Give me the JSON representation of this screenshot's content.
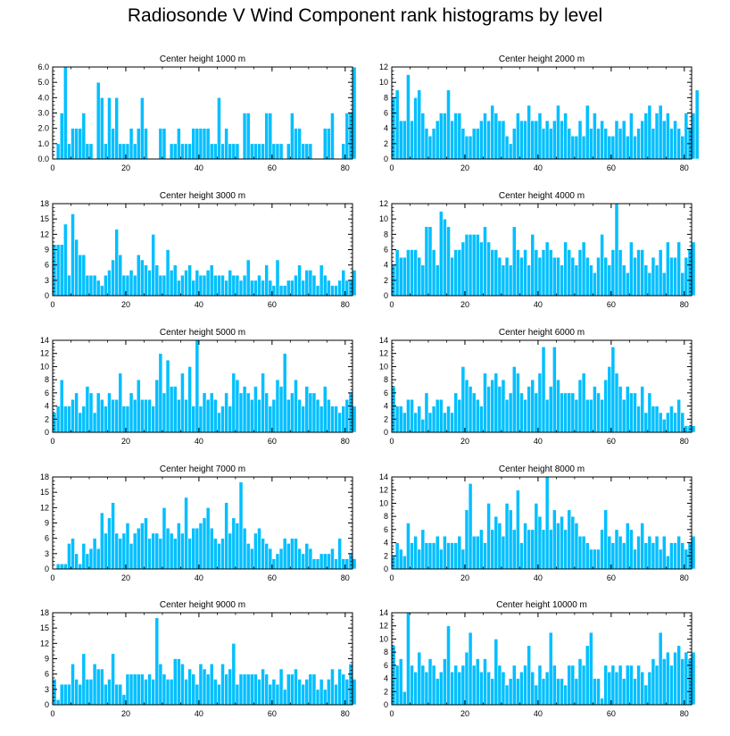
{
  "title": "Radiosonde V Wind Component rank histograms by level",
  "colors": {
    "bar": "#00BFFF",
    "bar_edge": "#ffffff",
    "axis": "#000000"
  },
  "chart_data": [
    {
      "type": "bar",
      "title": "Center height 1000 m",
      "ylim": [
        0,
        6
      ],
      "yticks": [
        0,
        1,
        2,
        3,
        4,
        5,
        6
      ],
      "ytick_labels": [
        "0.0",
        "1.0",
        "2.0",
        "3.0",
        "4.0",
        "5.0",
        "6.0"
      ],
      "xlim": [
        0,
        82
      ],
      "xticks": [
        0,
        20,
        40,
        60,
        80
      ],
      "xtick_labels": [
        "0",
        "20",
        "40",
        "60",
        "80"
      ],
      "values": [
        0,
        1,
        3,
        6,
        1,
        2,
        2,
        2,
        3,
        1,
        1,
        0,
        5,
        4,
        1,
        4,
        2,
        4,
        1,
        1,
        1,
        2,
        1,
        2,
        4,
        2,
        0,
        0,
        0,
        2,
        2,
        0,
        1,
        1,
        2,
        1,
        1,
        1,
        2,
        2,
        2,
        2,
        2,
        1,
        1,
        4,
        1,
        2,
        1,
        1,
        1,
        0,
        3,
        3,
        1,
        1,
        1,
        1,
        3,
        3,
        1,
        1,
        1,
        0,
        1,
        3,
        2,
        2,
        1,
        1,
        1,
        0,
        0,
        0,
        2,
        2,
        3,
        0,
        0,
        1,
        3,
        3,
        6
      ]
    },
    {
      "type": "bar",
      "title": "Center height 2000 m",
      "ylim": [
        0,
        12
      ],
      "yticks": [
        0,
        2,
        4,
        6,
        8,
        10,
        12
      ],
      "ytick_labels": [
        "0",
        "2",
        "4",
        "6",
        "8",
        "10",
        "12"
      ],
      "xlim": [
        0,
        82
      ],
      "xticks": [
        0,
        20,
        40,
        60,
        80
      ],
      "xtick_labels": [
        "0",
        "20",
        "40",
        "60",
        "80"
      ],
      "values": [
        8,
        9,
        5,
        5,
        11,
        5,
        8,
        9,
        6,
        4,
        3,
        4,
        5,
        6,
        6,
        9,
        5,
        6,
        6,
        4,
        3,
        3,
        4,
        4,
        5,
        6,
        5,
        7,
        6,
        5,
        5,
        3,
        2,
        4,
        6,
        5,
        5,
        7,
        5,
        5,
        6,
        4,
        5,
        4,
        5,
        7,
        5,
        6,
        4,
        3,
        3,
        5,
        3,
        7,
        4,
        6,
        4,
        5,
        4,
        3,
        3,
        5,
        4,
        5,
        3,
        6,
        3,
        4,
        5,
        6,
        7,
        4,
        6,
        7,
        5,
        6,
        4,
        5,
        4,
        3,
        6,
        4,
        6,
        9
      ]
    },
    {
      "type": "bar",
      "title": "Center height 3000 m",
      "ylim": [
        0,
        18
      ],
      "yticks": [
        0,
        3,
        6,
        9,
        12,
        15,
        18
      ],
      "ytick_labels": [
        "0",
        "3",
        "6",
        "9",
        "12",
        "15",
        "18"
      ],
      "xlim": [
        0,
        82
      ],
      "xticks": [
        0,
        20,
        40,
        60,
        80
      ],
      "xtick_labels": [
        "0",
        "20",
        "40",
        "60",
        "80"
      ],
      "values": [
        10,
        10,
        10,
        14,
        4,
        16,
        11,
        8,
        8,
        4,
        4,
        4,
        3,
        2,
        4,
        5,
        7,
        13,
        8,
        4,
        4,
        5,
        4,
        8,
        7,
        6,
        5,
        12,
        6,
        4,
        4,
        9,
        5,
        6,
        3,
        4,
        5,
        6,
        3,
        5,
        4,
        4,
        5,
        6,
        4,
        4,
        4,
        3,
        5,
        4,
        4,
        3,
        4,
        7,
        3,
        3,
        4,
        3,
        6,
        3,
        2,
        7,
        2,
        2,
        3,
        3,
        4,
        6,
        3,
        5,
        5,
        4,
        2,
        6,
        4,
        3,
        2,
        2,
        3,
        5,
        3,
        3,
        5
      ]
    },
    {
      "type": "bar",
      "title": "Center height 4000 m",
      "ylim": [
        0,
        12
      ],
      "yticks": [
        0,
        2,
        4,
        6,
        8,
        10,
        12
      ],
      "ytick_labels": [
        "0",
        "2",
        "4",
        "6",
        "8",
        "10",
        "12"
      ],
      "xlim": [
        0,
        82
      ],
      "xticks": [
        0,
        20,
        40,
        60,
        80
      ],
      "xtick_labels": [
        "0",
        "20",
        "40",
        "60",
        "80"
      ],
      "values": [
        4,
        6,
        5,
        5,
        6,
        6,
        6,
        5,
        4,
        9,
        9,
        6,
        4,
        11,
        10,
        9,
        5,
        6,
        6,
        7,
        8,
        8,
        8,
        8,
        7,
        9,
        7,
        6,
        6,
        5,
        4,
        5,
        4,
        9,
        6,
        5,
        6,
        4,
        8,
        6,
        5,
        6,
        7,
        6,
        5,
        5,
        4,
        7,
        6,
        5,
        4,
        6,
        7,
        5,
        4,
        3,
        5,
        8,
        5,
        4,
        6,
        12,
        6,
        4,
        3,
        7,
        5,
        6,
        6,
        4,
        3,
        5,
        4,
        6,
        3,
        7,
        5,
        5,
        7,
        3,
        5,
        6,
        7
      ]
    },
    {
      "type": "bar",
      "title": "Center height 5000 m",
      "ylim": [
        0,
        14
      ],
      "yticks": [
        0,
        2,
        4,
        6,
        8,
        10,
        12,
        14
      ],
      "ytick_labels": [
        "0",
        "2",
        "4",
        "6",
        "8",
        "10",
        "12",
        "14"
      ],
      "xlim": [
        0,
        82
      ],
      "xticks": [
        0,
        20,
        40,
        60,
        80
      ],
      "xtick_labels": [
        "0",
        "20",
        "40",
        "60",
        "80"
      ],
      "values": [
        3,
        4,
        8,
        4,
        4,
        5,
        6,
        3,
        4,
        7,
        6,
        3,
        6,
        5,
        4,
        6,
        5,
        5,
        9,
        4,
        4,
        6,
        5,
        8,
        5,
        5,
        5,
        4,
        8,
        12,
        6,
        11,
        7,
        7,
        5,
        9,
        5,
        10,
        4,
        14,
        4,
        6,
        5,
        6,
        5,
        3,
        4,
        6,
        4,
        9,
        8,
        6,
        7,
        6,
        5,
        7,
        5,
        9,
        6,
        4,
        5,
        8,
        7,
        12,
        5,
        6,
        8,
        5,
        4,
        7,
        6,
        6,
        5,
        4,
        7,
        5,
        4,
        4,
        3,
        4,
        5,
        6,
        4
      ]
    },
    {
      "type": "bar",
      "title": "Center height 6000 m",
      "ylim": [
        0,
        14
      ],
      "yticks": [
        0,
        2,
        4,
        6,
        8,
        10,
        12,
        14
      ],
      "ytick_labels": [
        "0",
        "2",
        "4",
        "6",
        "8",
        "10",
        "12",
        "14"
      ],
      "xlim": [
        0,
        82
      ],
      "xticks": [
        0,
        20,
        40,
        60,
        80
      ],
      "xtick_labels": [
        "0",
        "20",
        "40",
        "60",
        "80"
      ],
      "values": [
        7,
        4,
        4,
        3,
        5,
        5,
        3,
        4,
        2,
        6,
        3,
        4,
        5,
        5,
        3,
        4,
        3,
        6,
        5,
        10,
        8,
        7,
        6,
        5,
        4,
        9,
        7,
        8,
        9,
        7,
        8,
        5,
        6,
        10,
        9,
        6,
        5,
        7,
        8,
        6,
        9,
        13,
        5,
        7,
        13,
        8,
        6,
        6,
        6,
        6,
        5,
        8,
        9,
        5,
        5,
        7,
        6,
        5,
        8,
        10,
        13,
        9,
        7,
        5,
        7,
        6,
        6,
        4,
        7,
        3,
        6,
        4,
        4,
        3,
        2,
        3,
        4,
        3,
        5,
        3,
        1,
        1,
        1
      ]
    },
    {
      "type": "bar",
      "title": "Center height 7000 m",
      "ylim": [
        0,
        18
      ],
      "yticks": [
        0,
        3,
        6,
        9,
        12,
        15,
        18
      ],
      "ytick_labels": [
        "0",
        "3",
        "6",
        "9",
        "12",
        "15",
        "18"
      ],
      "xlim": [
        0,
        82
      ],
      "xticks": [
        0,
        20,
        40,
        60,
        80
      ],
      "xtick_labels": [
        "0",
        "20",
        "40",
        "60",
        "80"
      ],
      "values": [
        0,
        1,
        1,
        1,
        5,
        6,
        3,
        1,
        5,
        3,
        4,
        6,
        4,
        11,
        7,
        10,
        13,
        7,
        6,
        7,
        9,
        5,
        7,
        8,
        9,
        10,
        6,
        7,
        7,
        6,
        12,
        8,
        7,
        6,
        9,
        7,
        14,
        6,
        8,
        8,
        9,
        10,
        12,
        8,
        6,
        5,
        6,
        13,
        7,
        10,
        9,
        17,
        8,
        5,
        4,
        7,
        8,
        6,
        5,
        4,
        2,
        3,
        4,
        6,
        5,
        6,
        6,
        4,
        3,
        5,
        4,
        2,
        2,
        3,
        3,
        3,
        4,
        2,
        6,
        2,
        2,
        3,
        2
      ]
    },
    {
      "type": "bar",
      "title": "Center height 8000 m",
      "ylim": [
        0,
        14
      ],
      "yticks": [
        0,
        2,
        4,
        6,
        8,
        10,
        12,
        14
      ],
      "ytick_labels": [
        "0",
        "2",
        "4",
        "6",
        "8",
        "10",
        "12",
        "14"
      ],
      "xlim": [
        0,
        82
      ],
      "xticks": [
        0,
        20,
        40,
        60,
        80
      ],
      "xtick_labels": [
        "0",
        "20",
        "40",
        "60",
        "80"
      ],
      "values": [
        2,
        4,
        3,
        2,
        7,
        4,
        5,
        3,
        6,
        4,
        4,
        4,
        5,
        3,
        5,
        4,
        4,
        4,
        5,
        3,
        9,
        13,
        5,
        5,
        6,
        4,
        10,
        6,
        8,
        7,
        5,
        10,
        9,
        6,
        12,
        4,
        7,
        6,
        6,
        10,
        8,
        6,
        14,
        6,
        9,
        7,
        8,
        6,
        9,
        8,
        7,
        5,
        5,
        4,
        3,
        3,
        3,
        6,
        9,
        5,
        4,
        6,
        5,
        4,
        7,
        6,
        3,
        5,
        7,
        4,
        5,
        4,
        5,
        3,
        5,
        2,
        4,
        4,
        5,
        4,
        3,
        4,
        5
      ]
    },
    {
      "type": "bar",
      "title": "Center height 9000 m",
      "ylim": [
        0,
        18
      ],
      "yticks": [
        0,
        3,
        6,
        9,
        12,
        15,
        18
      ],
      "ytick_labels": [
        "0",
        "3",
        "6",
        "9",
        "12",
        "15",
        "18"
      ],
      "xlim": [
        0,
        82
      ],
      "xticks": [
        0,
        20,
        40,
        60,
        80
      ],
      "xtick_labels": [
        "0",
        "20",
        "40",
        "60",
        "80"
      ],
      "values": [
        5,
        1,
        4,
        4,
        4,
        8,
        5,
        4,
        10,
        5,
        5,
        8,
        7,
        7,
        4,
        5,
        10,
        4,
        4,
        2,
        6,
        6,
        6,
        6,
        6,
        5,
        6,
        5,
        17,
        8,
        6,
        5,
        5,
        9,
        9,
        8,
        5,
        7,
        6,
        4,
        8,
        7,
        6,
        8,
        5,
        4,
        8,
        6,
        7,
        12,
        4,
        6,
        6,
        6,
        6,
        6,
        5,
        7,
        6,
        4,
        5,
        4,
        7,
        3,
        6,
        6,
        7,
        5,
        4,
        5,
        6,
        6,
        3,
        5,
        3,
        5,
        7,
        4,
        7,
        6,
        5,
        8,
        5
      ]
    },
    {
      "type": "bar",
      "title": "Center height 10000 m",
      "ylim": [
        0,
        14
      ],
      "yticks": [
        0,
        2,
        4,
        6,
        8,
        10,
        12,
        14
      ],
      "ytick_labels": [
        "0",
        "2",
        "4",
        "6",
        "8",
        "10",
        "12",
        "14"
      ],
      "xlim": [
        0,
        82
      ],
      "xticks": [
        0,
        20,
        40,
        60,
        80
      ],
      "xtick_labels": [
        "0",
        "20",
        "40",
        "60",
        "80"
      ],
      "values": [
        9,
        6,
        7,
        2,
        14,
        6,
        5,
        8,
        6,
        5,
        7,
        6,
        4,
        5,
        7,
        12,
        5,
        6,
        5,
        6,
        8,
        11,
        6,
        7,
        5,
        7,
        5,
        4,
        10,
        6,
        5,
        3,
        4,
        6,
        4,
        5,
        6,
        9,
        5,
        3,
        6,
        4,
        5,
        11,
        6,
        4,
        4,
        3,
        6,
        6,
        4,
        7,
        6,
        9,
        11,
        4,
        4,
        1,
        6,
        5,
        6,
        5,
        6,
        4,
        6,
        6,
        4,
        6,
        5,
        3,
        5,
        7,
        6,
        11,
        7,
        8,
        6,
        8,
        9,
        7,
        8,
        7,
        8
      ]
    }
  ]
}
